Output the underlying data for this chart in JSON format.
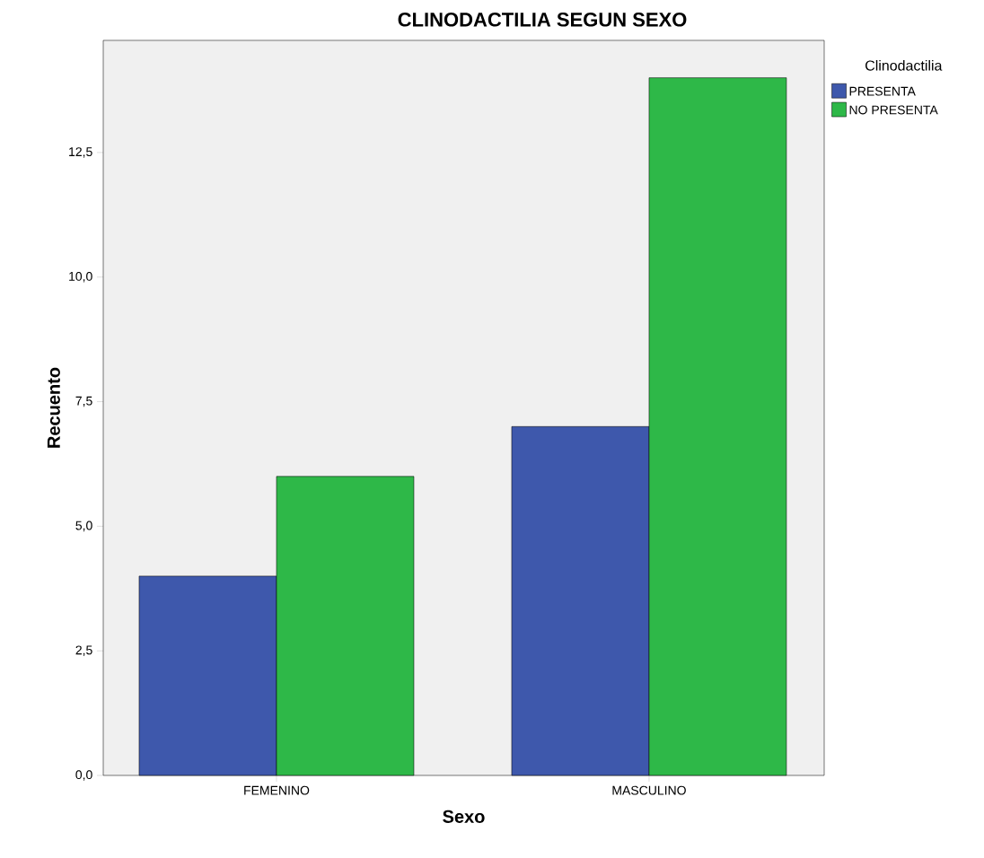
{
  "chart_data": {
    "type": "bar",
    "title": "CLINODACTILIA SEGUN SEXO",
    "xlabel": "Sexo",
    "ylabel": "Recuento",
    "legend_title": "Clinodactilia",
    "categories": [
      "FEMENINO",
      "MASCULINO"
    ],
    "series": [
      {
        "name": "PRESENTA",
        "color": "#3e58ac",
        "values": [
          4,
          7
        ]
      },
      {
        "name": "NO PRESENTA",
        "color": "#2eb848",
        "values": [
          6,
          14
        ]
      }
    ],
    "ylim": [
      0,
      14.75
    ],
    "yticks": [
      {
        "value": 0,
        "label": "0,0"
      },
      {
        "value": 2.5,
        "label": "2,5"
      },
      {
        "value": 5,
        "label": "5,0"
      },
      {
        "value": 7.5,
        "label": "7,5"
      },
      {
        "value": 10,
        "label": "10,0"
      },
      {
        "value": 12.5,
        "label": "12,5"
      }
    ],
    "legend": "right"
  }
}
